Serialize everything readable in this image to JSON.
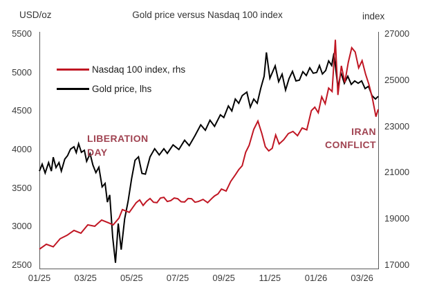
{
  "title": "Gold price versus Nasdaq 100 index",
  "left_axis": {
    "unit_label": "USD/oz",
    "min": 2500,
    "max": 5500,
    "tick_values": [
      5500,
      5000,
      4500,
      4000,
      3500,
      3000,
      2500
    ]
  },
  "right_axis": {
    "unit_label": "index",
    "min": 17000,
    "max": 27000,
    "tick_values": [
      27000,
      25000,
      23000,
      21000,
      19000,
      17000
    ]
  },
  "x_axis": {
    "tick_labels": [
      "01/25",
      "03/25",
      "05/25",
      "07/25",
      "09/25",
      "11/25",
      "01/26",
      "03/26"
    ],
    "tick_months": [
      0,
      2,
      4,
      6,
      8,
      10,
      12,
      14
    ]
  },
  "legend": {
    "items": [
      {
        "label": "Nasdaq 100 index, rhs",
        "color": "#c01623"
      },
      {
        "label": "Gold price, lhs",
        "color": "#000000"
      }
    ]
  },
  "annotations": [
    {
      "line1": "LIBERATION",
      "line2": "DAY"
    },
    {
      "line1": "IRAN",
      "line2": "CONFLICT"
    }
  ],
  "colors": {
    "nasdaq_line": "#c01623",
    "gold_line": "#000000",
    "annotation_text": "#a04351",
    "axis_line": "#595959",
    "tick_text": "#3a3a3a",
    "title_text": "#333333",
    "background": "#ffffff"
  },
  "chart_data": {
    "type": "line",
    "title": "Gold price versus Nasdaq 100 index",
    "x_unit": "months since Jan 2025 (0 = 01/25 tick, monthly decimals)",
    "x_range": [
      0,
      14.7
    ],
    "grid": false,
    "legend_position": "top-left-inside",
    "series": [
      {
        "name": "Nasdaq 100 index, rhs",
        "axis": "right",
        "color": "#c01623",
        "ylim": [
          17000,
          27000
        ],
        "points": [
          [
            0,
            17690
          ],
          [
            0.3,
            17900
          ],
          [
            0.6,
            17790
          ],
          [
            0.9,
            18140
          ],
          [
            1.2,
            18290
          ],
          [
            1.5,
            18500
          ],
          [
            1.8,
            18380
          ],
          [
            2.1,
            18740
          ],
          [
            2.4,
            18680
          ],
          [
            2.7,
            18950
          ],
          [
            3.0,
            18830
          ],
          [
            3.2,
            18740
          ],
          [
            3.45,
            19030
          ],
          [
            3.6,
            19400
          ],
          [
            3.9,
            19280
          ],
          [
            4.2,
            19700
          ],
          [
            4.35,
            19820
          ],
          [
            4.5,
            19580
          ],
          [
            4.65,
            19760
          ],
          [
            4.8,
            19880
          ],
          [
            4.95,
            19720
          ],
          [
            5.1,
            19700
          ],
          [
            5.25,
            19900
          ],
          [
            5.4,
            19930
          ],
          [
            5.55,
            19750
          ],
          [
            5.7,
            19790
          ],
          [
            5.85,
            19900
          ],
          [
            6.0,
            19870
          ],
          [
            6.15,
            19740
          ],
          [
            6.3,
            19730
          ],
          [
            6.45,
            19880
          ],
          [
            6.6,
            19870
          ],
          [
            6.75,
            19720
          ],
          [
            6.9,
            19750
          ],
          [
            7.1,
            19840
          ],
          [
            7.3,
            19700
          ],
          [
            7.5,
            19900
          ],
          [
            7.6,
            19990
          ],
          [
            7.75,
            20080
          ],
          [
            7.9,
            20290
          ],
          [
            8.1,
            20200
          ],
          [
            8.3,
            20620
          ],
          [
            8.5,
            20900
          ],
          [
            8.65,
            21130
          ],
          [
            8.8,
            21300
          ],
          [
            8.95,
            21880
          ],
          [
            9.1,
            22180
          ],
          [
            9.3,
            22870
          ],
          [
            9.48,
            23230
          ],
          [
            9.65,
            22690
          ],
          [
            9.8,
            22120
          ],
          [
            9.95,
            21940
          ],
          [
            10.1,
            22050
          ],
          [
            10.25,
            22630
          ],
          [
            10.4,
            22240
          ],
          [
            10.6,
            22420
          ],
          [
            10.8,
            22690
          ],
          [
            11.0,
            22780
          ],
          [
            11.2,
            22600
          ],
          [
            11.4,
            22930
          ],
          [
            11.6,
            22850
          ],
          [
            11.8,
            23680
          ],
          [
            11.95,
            23830
          ],
          [
            12.1,
            23590
          ],
          [
            12.25,
            24280
          ],
          [
            12.4,
            23980
          ],
          [
            12.55,
            24660
          ],
          [
            12.7,
            24510
          ],
          [
            12.84,
            26750
          ],
          [
            12.95,
            24360
          ],
          [
            13.1,
            25620
          ],
          [
            13.25,
            24900
          ],
          [
            13.4,
            25770
          ],
          [
            13.55,
            26400
          ],
          [
            13.7,
            26220
          ],
          [
            13.85,
            25530
          ],
          [
            14.0,
            25840
          ],
          [
            14.15,
            25260
          ],
          [
            14.3,
            24800
          ],
          [
            14.45,
            24200
          ],
          [
            14.6,
            23420
          ],
          [
            14.7,
            23740
          ]
        ]
      },
      {
        "name": "Gold price, lhs",
        "axis": "left",
        "color": "#000000",
        "ylim": [
          2500,
          5500
        ],
        "points": [
          [
            0,
            3720
          ],
          [
            0.12,
            3810
          ],
          [
            0.25,
            3695
          ],
          [
            0.4,
            3830
          ],
          [
            0.52,
            3720
          ],
          [
            0.6,
            3900
          ],
          [
            0.72,
            3766
          ],
          [
            0.85,
            3830
          ],
          [
            0.95,
            3720
          ],
          [
            1.1,
            3875
          ],
          [
            1.22,
            3920
          ],
          [
            1.35,
            4005
          ],
          [
            1.5,
            4036
          ],
          [
            1.6,
            3960
          ],
          [
            1.7,
            4075
          ],
          [
            1.82,
            3964
          ],
          [
            1.95,
            3990
          ],
          [
            2.05,
            3847
          ],
          [
            2.2,
            3946
          ],
          [
            2.32,
            3800
          ],
          [
            2.45,
            3700
          ],
          [
            2.58,
            3770
          ],
          [
            2.72,
            3515
          ],
          [
            2.85,
            3560
          ],
          [
            2.95,
            3317
          ],
          [
            3.05,
            3410
          ],
          [
            3.18,
            2860
          ],
          [
            3.3,
            2530
          ],
          [
            3.42,
            3040
          ],
          [
            3.55,
            2700
          ],
          [
            3.7,
            3100
          ],
          [
            3.85,
            3330
          ],
          [
            4.0,
            3620
          ],
          [
            4.15,
            3860
          ],
          [
            4.3,
            3905
          ],
          [
            4.45,
            3690
          ],
          [
            4.6,
            3680
          ],
          [
            4.8,
            3905
          ],
          [
            5.0,
            4010
          ],
          [
            5.2,
            3930
          ],
          [
            5.4,
            4010
          ],
          [
            5.55,
            3950
          ],
          [
            5.8,
            4060
          ],
          [
            6.05,
            4000
          ],
          [
            6.3,
            4120
          ],
          [
            6.5,
            4050
          ],
          [
            6.75,
            4180
          ],
          [
            7.0,
            4320
          ],
          [
            7.2,
            4250
          ],
          [
            7.4,
            4380
          ],
          [
            7.6,
            4300
          ],
          [
            7.85,
            4450
          ],
          [
            8.0,
            4415
          ],
          [
            8.2,
            4565
          ],
          [
            8.35,
            4500
          ],
          [
            8.5,
            4655
          ],
          [
            8.65,
            4600
          ],
          [
            8.8,
            4700
          ],
          [
            9.0,
            4745
          ],
          [
            9.15,
            4550
          ],
          [
            9.3,
            4655
          ],
          [
            9.45,
            4600
          ],
          [
            9.6,
            4790
          ],
          [
            9.75,
            4950
          ],
          [
            9.85,
            5260
          ],
          [
            10.0,
            4924
          ],
          [
            10.23,
            5086
          ],
          [
            10.38,
            4880
          ],
          [
            10.53,
            4978
          ],
          [
            10.68,
            4772
          ],
          [
            10.83,
            4920
          ],
          [
            10.98,
            5014
          ],
          [
            11.13,
            4890
          ],
          [
            11.28,
            4900
          ],
          [
            11.43,
            5010
          ],
          [
            11.58,
            4960
          ],
          [
            11.73,
            5060
          ],
          [
            11.88,
            4990
          ],
          [
            12.03,
            5000
          ],
          [
            12.15,
            5090
          ],
          [
            12.28,
            4980
          ],
          [
            12.42,
            5025
          ],
          [
            12.55,
            5150
          ],
          [
            12.68,
            5090
          ],
          [
            12.78,
            5250
          ],
          [
            12.95,
            4800
          ],
          [
            13.08,
            5000
          ],
          [
            13.23,
            4860
          ],
          [
            13.38,
            4950
          ],
          [
            13.53,
            4845
          ],
          [
            13.68,
            4890
          ],
          [
            13.83,
            4860
          ],
          [
            13.98,
            4890
          ],
          [
            14.13,
            4790
          ],
          [
            14.28,
            4820
          ],
          [
            14.43,
            4700
          ],
          [
            14.58,
            4655
          ],
          [
            14.7,
            4690
          ]
        ]
      }
    ]
  }
}
